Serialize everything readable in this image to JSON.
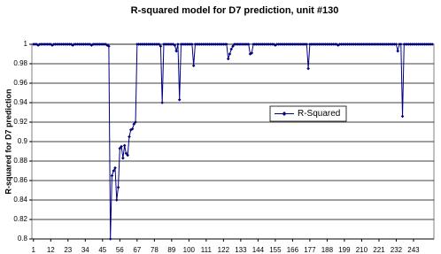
{
  "chart_data": {
    "type": "line",
    "title": "R-squared model for D7 prediction, unit #130",
    "y_label": "R-squared for D7 prediction",
    "x": [
      1,
      2,
      3,
      4,
      5,
      6,
      7,
      8,
      9,
      10,
      11,
      12,
      13,
      14,
      15,
      16,
      17,
      18,
      19,
      20,
      21,
      22,
      23,
      24,
      25,
      26,
      27,
      28,
      29,
      30,
      31,
      32,
      33,
      34,
      35,
      36,
      37,
      38,
      39,
      40,
      41,
      42,
      43,
      44,
      45,
      46,
      47,
      48,
      49,
      50,
      51,
      52,
      53,
      54,
      55,
      56,
      57,
      58,
      59,
      60,
      61,
      62,
      63,
      64,
      65,
      66,
      67,
      68,
      69,
      70,
      71,
      72,
      73,
      74,
      75,
      76,
      77,
      78,
      79,
      80,
      81,
      82,
      83,
      84,
      85,
      86,
      87,
      88,
      89,
      90,
      91,
      92,
      93,
      94,
      95,
      96,
      97,
      98,
      99,
      100,
      101,
      102,
      103,
      104,
      105,
      106,
      107,
      108,
      109,
      110,
      111,
      112,
      113,
      114,
      115,
      116,
      117,
      118,
      119,
      120,
      121,
      122,
      123,
      124,
      125,
      126,
      127,
      128,
      129,
      130,
      131,
      132,
      133,
      134,
      135,
      136,
      137,
      138,
      139,
      140,
      141,
      142,
      143,
      144,
      145,
      146,
      147,
      148,
      149,
      150,
      151,
      152,
      153,
      154,
      155,
      156,
      157,
      158,
      159,
      160,
      161,
      162,
      163,
      164,
      165,
      166,
      167,
      168,
      169,
      170,
      171,
      172,
      173,
      174,
      175,
      176,
      177,
      178,
      179,
      180,
      181,
      182,
      183,
      184,
      185,
      186,
      187,
      188,
      189,
      190,
      191,
      192,
      193,
      194,
      195,
      196,
      197,
      198,
      199,
      200,
      201,
      202,
      203,
      204,
      205,
      206,
      207,
      208,
      209,
      210,
      211,
      212,
      213,
      214,
      215,
      216,
      217,
      218,
      219,
      220,
      221,
      222,
      223,
      224,
      225,
      226,
      227,
      228,
      229,
      230,
      231,
      232,
      233,
      234,
      235,
      236,
      237,
      238,
      239,
      240,
      241,
      242,
      243,
      244,
      245,
      246,
      247,
      248,
      249,
      250,
      251,
      252,
      253,
      254,
      255
    ],
    "series": [
      {
        "name": "R-Squared",
        "color": "#000080",
        "values": [
          1,
          1,
          1,
          0.999,
          1,
          1,
          1,
          1,
          1,
          1,
          1,
          1,
          0.999,
          1,
          1,
          1,
          1,
          1,
          1,
          1,
          1,
          1,
          1,
          1,
          1,
          0.999,
          1,
          1,
          1,
          1,
          1,
          1,
          1,
          1,
          1,
          1,
          1,
          0.999,
          1,
          1,
          1,
          1,
          1,
          1,
          1,
          1,
          1,
          0.999,
          0.998,
          0.8,
          0.865,
          0.87,
          0.873,
          0.84,
          0.853,
          0.893,
          0.895,
          0.883,
          0.896,
          0.888,
          0.886,
          0.905,
          0.912,
          0.913,
          0.918,
          0.92,
          1,
          1,
          1,
          1,
          1,
          1,
          1,
          1,
          1,
          1,
          1,
          1,
          1,
          1,
          1,
          0.998,
          0.94,
          1,
          1,
          1,
          1,
          1,
          1,
          1,
          0.999,
          0.993,
          1,
          0.943,
          1,
          1,
          1,
          1,
          1,
          1,
          1,
          1,
          0.978,
          1,
          1,
          1,
          1,
          1,
          1,
          1,
          1,
          1,
          1,
          1,
          1,
          1,
          1,
          1,
          1,
          1,
          1,
          1,
          1,
          1,
          0.985,
          0.99,
          0.995,
          0.998,
          1,
          1,
          1,
          1,
          1,
          1,
          1,
          1,
          1,
          1,
          0.99,
          0.991,
          1,
          1,
          1,
          1,
          1,
          1,
          1,
          1,
          1,
          1,
          1,
          1,
          1,
          1,
          0.999,
          1,
          1,
          1,
          1,
          1,
          1,
          1,
          1,
          1,
          1,
          1,
          1,
          1,
          1,
          1,
          1,
          1,
          1,
          1,
          1,
          0.975,
          1,
          1,
          1,
          1,
          1,
          1,
          1,
          1,
          1,
          1,
          1,
          1,
          1,
          1,
          1,
          1,
          1,
          1,
          0.999,
          1,
          1,
          1,
          1,
          1,
          1,
          1,
          1,
          1,
          1,
          1,
          1,
          1,
          1,
          1,
          1,
          1,
          1,
          1,
          1,
          1,
          1,
          1,
          1,
          1,
          1,
          1,
          1,
          1,
          1,
          1,
          1,
          1,
          1,
          1,
          1,
          1,
          0.993,
          1,
          1,
          0.926,
          1,
          1,
          1,
          1,
          1,
          1,
          1,
          1,
          1,
          1,
          1,
          1,
          1,
          1,
          1,
          1,
          1,
          1,
          1
        ]
      }
    ],
    "xlim": [
      0,
      256
    ],
    "xticks": [
      1,
      12,
      23,
      34,
      45,
      56,
      67,
      78,
      89,
      100,
      111,
      122,
      133,
      144,
      155,
      166,
      177,
      188,
      199,
      210,
      221,
      232,
      243
    ],
    "ylim": [
      0.8,
      1
    ],
    "yticks": [
      0.8,
      0.82,
      0.84,
      0.86,
      0.88,
      0.9,
      0.92,
      0.94,
      0.96,
      0.98,
      1
    ],
    "grid": true,
    "legend": "right"
  }
}
